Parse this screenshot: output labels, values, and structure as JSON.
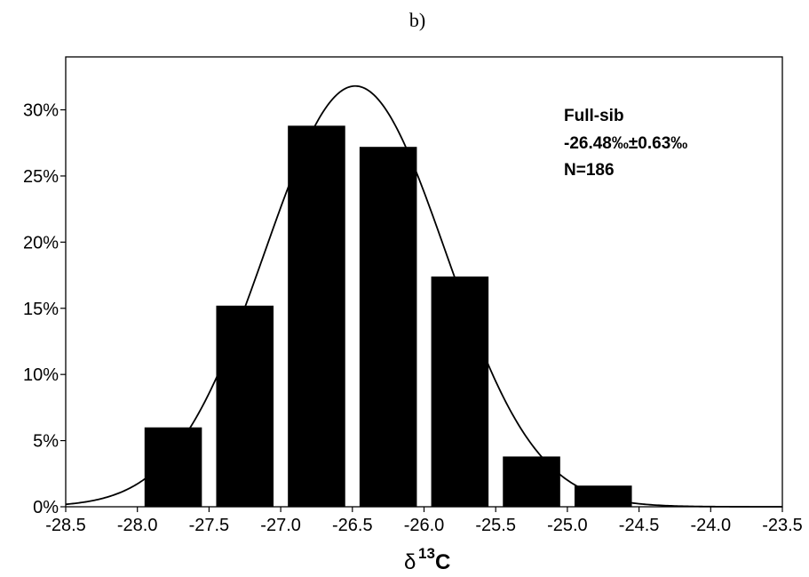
{
  "panel_label": "b)",
  "chart_data": {
    "type": "bar",
    "bin_width": 0.5,
    "bins": [
      {
        "center": -27.75,
        "value": 6.0
      },
      {
        "center": -27.25,
        "value": 15.2
      },
      {
        "center": -26.75,
        "value": 28.8
      },
      {
        "center": -26.25,
        "value": 27.2
      },
      {
        "center": -25.75,
        "value": 17.4
      },
      {
        "center": -25.25,
        "value": 3.8
      },
      {
        "center": -24.75,
        "value": 1.6
      }
    ],
    "normal_curve": {
      "mean": -26.48,
      "sd": 0.63,
      "peak": 31.8
    },
    "xlim": [
      -28.5,
      -23.5
    ],
    "ylim": [
      0,
      34
    ],
    "x_ticks": [
      "-28.5",
      "-28.0",
      "-27.5",
      "-27.0",
      "-26.5",
      "-26.0",
      "-25.5",
      "-25.0",
      "-24.5",
      "-24.0",
      "-23.5"
    ],
    "x_tick_values": [
      -28.5,
      -28.0,
      -27.5,
      -27.0,
      -26.5,
      -26.0,
      -25.5,
      -25.0,
      -24.5,
      -24.0,
      -23.5
    ],
    "y_ticks": [
      "0%",
      "5%",
      "10%",
      "15%",
      "20%",
      "25%",
      "30%"
    ],
    "y_tick_values": [
      0,
      5,
      10,
      15,
      20,
      25,
      30
    ],
    "xlabel": {
      "prefix": "δ",
      "sup": "13",
      "suffix": "C"
    },
    "annotation": [
      "Full-sib",
      "-26.48‰±0.63‰",
      "N=186"
    ],
    "bar_color": "#000000",
    "line_color": "#000000"
  }
}
